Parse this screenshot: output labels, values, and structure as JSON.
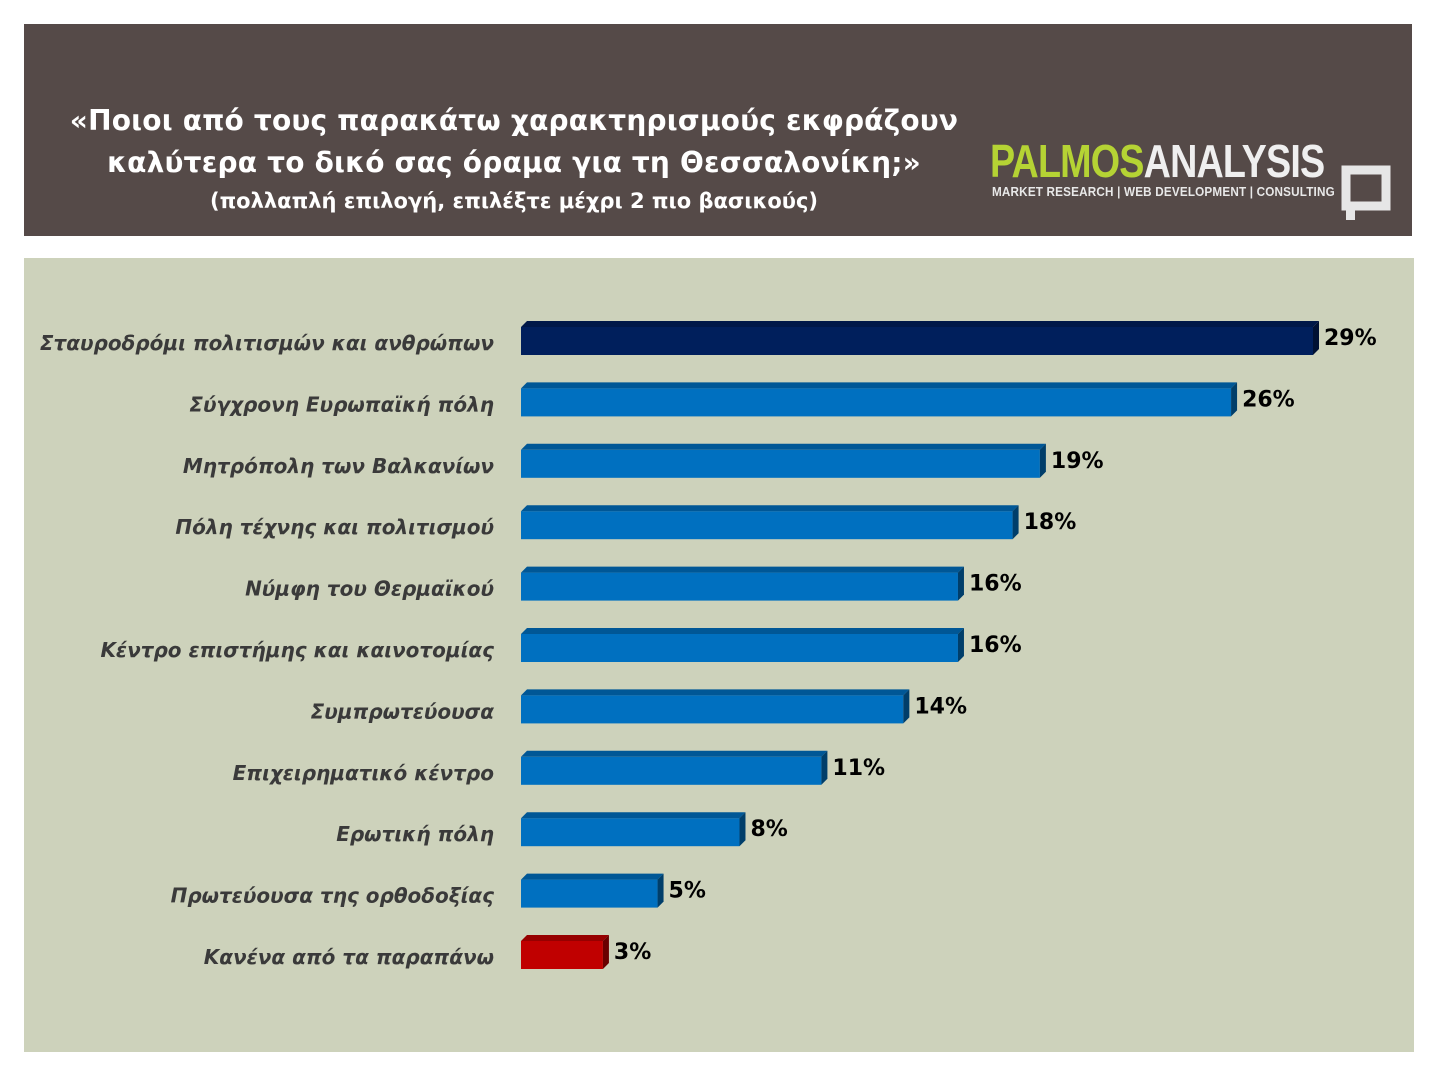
{
  "header": {
    "title_line1": "«Ποιοι από τους παρακάτω χαρακτηρισμούς εκφράζουν",
    "title_line2": "καλύτερα το δικό σας όραμα για τη Θεσσαλονίκη;»",
    "subtitle": "(πολλαπλή επιλογή, επιλέξτε μέχρι 2 πιο βασικούς)"
  },
  "logo": {
    "word1": "PALMOS",
    "word2": "ANALYSIS",
    "tagline": "MARKET RESEARCH | WEB DEVELOPMENT | CONSULTING",
    "color_primary": "#b5d334",
    "color_secondary": "#efefef"
  },
  "chart_data": {
    "type": "bar",
    "orientation": "horizontal",
    "categories": [
      "Σταυροδρόμι πολιτισμών και ανθρώπων",
      "Σύγχρονη Ευρωπαϊκή πόλη",
      "Μητρόπολη των Βαλκανίων",
      "Πόλη τέχνης και πολιτισμού",
      "Νύμφη του Θερμαϊκού",
      "Κέντρο επιστήμης και καινοτομίας",
      "Συμπρωτεύουσα",
      "Επιχειρηματικό κέντρο",
      "Ερωτική πόλη",
      "Πρωτεύουσα της ορθοδοξίας",
      "Κανένα από τα παραπάνω"
    ],
    "values": [
      29,
      26,
      19,
      18,
      16,
      16,
      14,
      11,
      8,
      5,
      3
    ],
    "value_labels": [
      "29%",
      "26%",
      "19%",
      "18%",
      "16%",
      "16%",
      "14%",
      "11%",
      "8%",
      "5%",
      "3%"
    ],
    "unit": "%",
    "xlim": [
      0,
      29
    ],
    "grid": false,
    "legend": "none",
    "colors": [
      "#001f5c",
      "#0070c0",
      "#0070c0",
      "#0070c0",
      "#0070c0",
      "#0070c0",
      "#0070c0",
      "#0070c0",
      "#0070c0",
      "#0070c0",
      "#c00000"
    ],
    "label_color": "#3a3a3a",
    "value_label_color": "#000000"
  }
}
